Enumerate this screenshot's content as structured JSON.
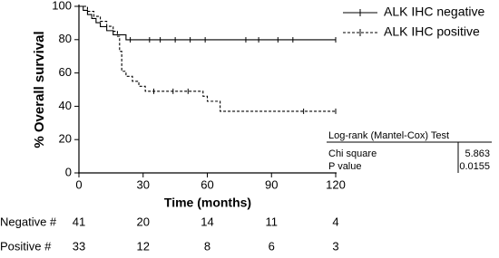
{
  "chart_data": {
    "type": "km",
    "ylabel": "% Overall survival",
    "xlabel": "Time (months)",
    "xlim": [
      0,
      120
    ],
    "xticks": [
      0,
      30,
      60,
      90,
      120
    ],
    "ylim": [
      0,
      100
    ],
    "yticks": [
      0,
      20,
      40,
      60,
      80,
      100
    ],
    "legend": "top-right",
    "series": [
      {
        "name": "ALK IHC negative",
        "color": "#000000",
        "dash": false,
        "x": [
          0,
          2,
          4,
          6,
          8,
          10,
          13,
          16,
          22,
          120
        ],
        "values": [
          100,
          97.6,
          95.1,
          92.7,
          90.2,
          87.8,
          85.4,
          82.9,
          79.9,
          79.9
        ],
        "censored_x": [
          24,
          33,
          38,
          45,
          52,
          59,
          78,
          84,
          93,
          100,
          120
        ],
        "censored_values": [
          79.9,
          79.9,
          79.9,
          79.9,
          79.9,
          79.9,
          79.9,
          79.9,
          79.9,
          79.9,
          79.9
        ]
      },
      {
        "name": "ALK IHC positive",
        "color": "#000000",
        "dash": true,
        "x": [
          0,
          4,
          7,
          10,
          13,
          16,
          18,
          19,
          20,
          22,
          25,
          28,
          31,
          58,
          60,
          66,
          120
        ],
        "values": [
          100,
          97,
          94,
          91,
          88,
          85,
          82,
          73,
          61,
          58,
          55,
          52,
          49,
          46,
          43,
          37,
          37
        ],
        "censored_x": [
          35,
          44,
          51,
          105,
          120
        ],
        "censored_values": [
          49,
          49,
          49,
          37,
          37
        ]
      }
    ]
  },
  "log_rank": {
    "title": "Log-rank (Mantel-Cox) Test",
    "rows": [
      [
        "Chi square",
        5.863
      ],
      [
        "P value",
        0.0155
      ]
    ]
  },
  "at_risk": {
    "rows": [
      {
        "label": "Negative #",
        "values": [
          41,
          20,
          14,
          11,
          4
        ]
      },
      {
        "label": "Positive #",
        "values": [
          33,
          12,
          8,
          6,
          3
        ]
      }
    ]
  }
}
